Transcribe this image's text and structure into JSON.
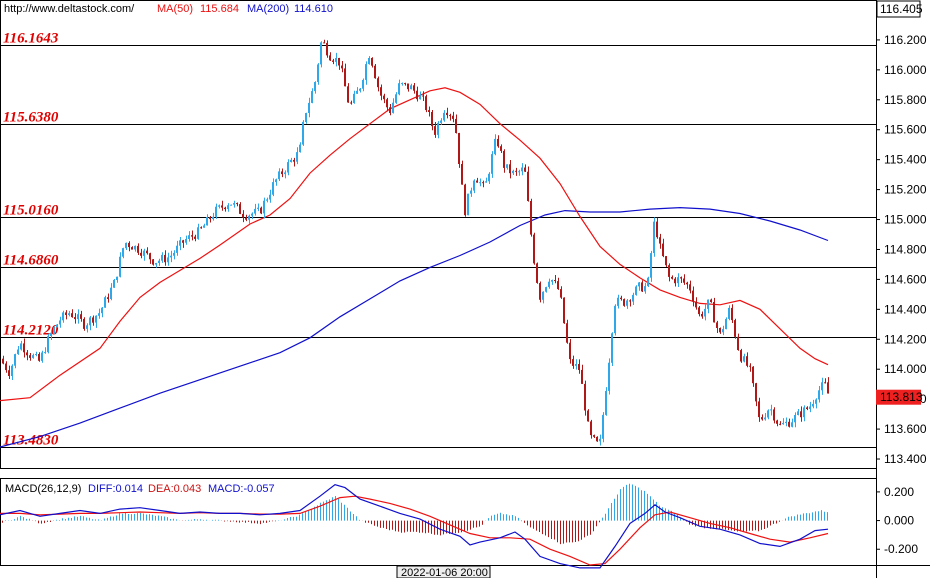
{
  "header": {
    "site": "http://www.deltastock.com/",
    "ma50_label": "MA(50)",
    "ma50_value": "115.684",
    "ma200_label": "MA(200)",
    "ma200_value": "114.610",
    "top_price": "116.405"
  },
  "colors": {
    "up": "#2ea8e8",
    "down": "#b01818",
    "ma50": "#ee1111",
    "ma200": "#1010cc",
    "level_text": "#e00000",
    "last_price_bg": "#ee2020"
  },
  "price_panel": {
    "ylim": [
      113.34,
      116.46
    ],
    "y_ticks": [
      "113.400",
      "113.600",
      "113.800",
      "114.000",
      "114.200",
      "114.400",
      "114.600",
      "114.800",
      "115.000",
      "115.200",
      "115.400",
      "115.600",
      "115.800",
      "116.000",
      "116.200"
    ],
    "last_price": "113.813",
    "levels": [
      {
        "label": "116.1643",
        "value": 116.1643
      },
      {
        "label": "115.6380",
        "value": 115.638
      },
      {
        "label": "115.0160",
        "value": 115.016
      },
      {
        "label": "114.6860",
        "value": 114.686
      },
      {
        "label": "114.2120",
        "value": 114.212
      },
      {
        "label": "113.4830",
        "value": 113.483
      }
    ]
  },
  "macd_panel": {
    "title": "MACD(26,12,9)",
    "diff_label": "DIFF:0.014",
    "dea_label": "DEA:0.043",
    "macd_label": "MACD:-0.057",
    "ylim": [
      -0.31,
      0.29
    ],
    "y_ticks": [
      "0.200",
      "0.000",
      "-0.200"
    ]
  },
  "x_axis": {
    "cursor_label": "2022-01-06 20:00"
  },
  "chart_data": {
    "type": "candlestick",
    "price_anchors": [
      [
        0,
        114.07
      ],
      [
        10,
        113.98
      ],
      [
        20,
        114.18
      ],
      [
        30,
        114.1
      ],
      [
        40,
        114.05
      ],
      [
        50,
        114.22
      ],
      [
        60,
        114.33
      ],
      [
        70,
        114.38
      ],
      [
        85,
        114.3
      ],
      [
        100,
        114.38
      ],
      [
        115,
        114.58
      ],
      [
        125,
        114.85
      ],
      [
        140,
        114.8
      ],
      [
        155,
        114.72
      ],
      [
        170,
        114.75
      ],
      [
        185,
        114.86
      ],
      [
        200,
        114.92
      ],
      [
        215,
        115.05
      ],
      [
        230,
        115.12
      ],
      [
        245,
        115.03
      ],
      [
        260,
        115.05
      ],
      [
        275,
        115.25
      ],
      [
        290,
        115.38
      ],
      [
        300,
        115.45
      ],
      [
        305,
        115.7
      ],
      [
        315,
        115.9
      ],
      [
        322,
        116.2
      ],
      [
        330,
        116.1
      ],
      [
        340,
        116.05
      ],
      [
        350,
        115.75
      ],
      [
        360,
        115.88
      ],
      [
        370,
        116.12
      ],
      [
        380,
        115.85
      ],
      [
        390,
        115.72
      ],
      [
        400,
        115.9
      ],
      [
        412,
        115.88
      ],
      [
        425,
        115.78
      ],
      [
        435,
        115.58
      ],
      [
        445,
        115.75
      ],
      [
        455,
        115.68
      ],
      [
        465,
        115.05
      ],
      [
        475,
        115.3
      ],
      [
        485,
        115.2
      ],
      [
        497,
        115.55
      ],
      [
        505,
        115.35
      ],
      [
        515,
        115.3
      ],
      [
        525,
        115.34
      ],
      [
        533,
        114.8
      ],
      [
        540,
        114.48
      ],
      [
        550,
        114.62
      ],
      [
        560,
        114.52
      ],
      [
        570,
        114.05
      ],
      [
        580,
        114.0
      ],
      [
        590,
        113.55
      ],
      [
        600,
        113.48
      ],
      [
        610,
        114.1
      ],
      [
        615,
        114.45
      ],
      [
        625,
        114.45
      ],
      [
        640,
        114.55
      ],
      [
        648,
        114.55
      ],
      [
        655,
        115.0
      ],
      [
        660,
        114.82
      ],
      [
        670,
        114.6
      ],
      [
        680,
        114.6
      ],
      [
        690,
        114.55
      ],
      [
        700,
        114.35
      ],
      [
        710,
        114.45
      ],
      [
        720,
        114.22
      ],
      [
        730,
        114.4
      ],
      [
        740,
        114.1
      ],
      [
        750,
        114.0
      ],
      [
        760,
        113.65
      ],
      [
        770,
        113.75
      ],
      [
        780,
        113.62
      ],
      [
        790,
        113.65
      ],
      [
        800,
        113.7
      ],
      [
        810,
        113.75
      ],
      [
        818,
        113.85
      ],
      [
        825,
        113.9
      ],
      [
        830,
        113.81
      ]
    ],
    "ma50": [
      [
        0,
        113.79
      ],
      [
        30,
        113.81
      ],
      [
        60,
        113.96
      ],
      [
        100,
        114.14
      ],
      [
        120,
        114.32
      ],
      [
        140,
        114.48
      ],
      [
        160,
        114.58
      ],
      [
        180,
        114.66
      ],
      [
        200,
        114.74
      ],
      [
        220,
        114.83
      ],
      [
        250,
        114.97
      ],
      [
        270,
        115.03
      ],
      [
        290,
        115.14
      ],
      [
        310,
        115.31
      ],
      [
        330,
        115.43
      ],
      [
        350,
        115.54
      ],
      [
        370,
        115.64
      ],
      [
        390,
        115.74
      ],
      [
        410,
        115.8
      ],
      [
        430,
        115.86
      ],
      [
        445,
        115.88
      ],
      [
        460,
        115.85
      ],
      [
        480,
        115.77
      ],
      [
        500,
        115.64
      ],
      [
        520,
        115.53
      ],
      [
        540,
        115.41
      ],
      [
        560,
        115.24
      ],
      [
        580,
        115.02
      ],
      [
        600,
        114.82
      ],
      [
        620,
        114.7
      ],
      [
        640,
        114.61
      ],
      [
        660,
        114.53
      ],
      [
        680,
        114.48
      ],
      [
        700,
        114.44
      ],
      [
        720,
        114.43
      ],
      [
        740,
        114.46
      ],
      [
        760,
        114.4
      ],
      [
        780,
        114.27
      ],
      [
        800,
        114.14
      ],
      [
        815,
        114.07
      ],
      [
        828,
        114.03
      ]
    ],
    "ma200": [
      [
        0,
        113.48
      ],
      [
        40,
        113.55
      ],
      [
        80,
        113.64
      ],
      [
        120,
        113.74
      ],
      [
        160,
        113.84
      ],
      [
        200,
        113.93
      ],
      [
        240,
        114.02
      ],
      [
        280,
        114.11
      ],
      [
        310,
        114.21
      ],
      [
        340,
        114.35
      ],
      [
        370,
        114.47
      ],
      [
        400,
        114.59
      ],
      [
        430,
        114.68
      ],
      [
        460,
        114.76
      ],
      [
        490,
        114.85
      ],
      [
        520,
        114.96
      ],
      [
        545,
        115.03
      ],
      [
        565,
        115.06
      ],
      [
        590,
        115.05
      ],
      [
        620,
        115.05
      ],
      [
        650,
        115.07
      ],
      [
        680,
        115.08
      ],
      [
        710,
        115.07
      ],
      [
        740,
        115.04
      ],
      [
        770,
        114.99
      ],
      [
        800,
        114.93
      ],
      [
        828,
        114.86
      ]
    ],
    "macd_diff": [
      [
        0,
        0.04
      ],
      [
        20,
        0.07
      ],
      [
        40,
        0.03
      ],
      [
        60,
        0.05
      ],
      [
        80,
        0.07
      ],
      [
        100,
        0.05
      ],
      [
        120,
        0.08
      ],
      [
        140,
        0.09
      ],
      [
        160,
        0.07
      ],
      [
        180,
        0.05
      ],
      [
        200,
        0.06
      ],
      [
        220,
        0.05
      ],
      [
        240,
        0.05
      ],
      [
        260,
        0.04
      ],
      [
        280,
        0.05
      ],
      [
        300,
        0.07
      ],
      [
        320,
        0.17
      ],
      [
        335,
        0.25
      ],
      [
        345,
        0.23
      ],
      [
        360,
        0.15
      ],
      [
        380,
        0.1
      ],
      [
        400,
        0.05
      ],
      [
        420,
        0.01
      ],
      [
        440,
        -0.06
      ],
      [
        460,
        -0.11
      ],
      [
        470,
        -0.17
      ],
      [
        480,
        -0.15
      ],
      [
        500,
        -0.12
      ],
      [
        515,
        -0.08
      ],
      [
        525,
        -0.13
      ],
      [
        540,
        -0.25
      ],
      [
        560,
        -0.3
      ],
      [
        580,
        -0.33
      ],
      [
        600,
        -0.33
      ],
      [
        615,
        -0.18
      ],
      [
        630,
        -0.02
      ],
      [
        645,
        0.05
      ],
      [
        655,
        0.11
      ],
      [
        665,
        0.06
      ],
      [
        680,
        0.02
      ],
      [
        700,
        -0.04
      ],
      [
        720,
        -0.06
      ],
      [
        740,
        -0.1
      ],
      [
        760,
        -0.16
      ],
      [
        780,
        -0.18
      ],
      [
        800,
        -0.13
      ],
      [
        815,
        -0.07
      ],
      [
        828,
        -0.06
      ]
    ],
    "macd_dea": [
      [
        0,
        0.05
      ],
      [
        20,
        0.05
      ],
      [
        40,
        0.04
      ],
      [
        60,
        0.045
      ],
      [
        80,
        0.05
      ],
      [
        100,
        0.05
      ],
      [
        120,
        0.055
      ],
      [
        140,
        0.06
      ],
      [
        160,
        0.055
      ],
      [
        180,
        0.05
      ],
      [
        200,
        0.055
      ],
      [
        220,
        0.05
      ],
      [
        240,
        0.05
      ],
      [
        260,
        0.045
      ],
      [
        280,
        0.045
      ],
      [
        300,
        0.05
      ],
      [
        320,
        0.1
      ],
      [
        340,
        0.16
      ],
      [
        355,
        0.17
      ],
      [
        370,
        0.15
      ],
      [
        390,
        0.12
      ],
      [
        410,
        0.08
      ],
      [
        430,
        0.03
      ],
      [
        450,
        -0.03
      ],
      [
        470,
        -0.09
      ],
      [
        490,
        -0.12
      ],
      [
        510,
        -0.12
      ],
      [
        530,
        -0.13
      ],
      [
        550,
        -0.2
      ],
      [
        570,
        -0.25
      ],
      [
        590,
        -0.31
      ],
      [
        605,
        -0.3
      ],
      [
        620,
        -0.2
      ],
      [
        640,
        -0.05
      ],
      [
        655,
        0.04
      ],
      [
        670,
        0.06
      ],
      [
        690,
        0.02
      ],
      [
        710,
        -0.02
      ],
      [
        730,
        -0.05
      ],
      [
        750,
        -0.09
      ],
      [
        770,
        -0.13
      ],
      [
        790,
        -0.15
      ],
      [
        810,
        -0.12
      ],
      [
        828,
        -0.09
      ]
    ],
    "macd_hist": [
      [
        0,
        -0.02
      ],
      [
        20,
        0.03
      ],
      [
        40,
        -0.02
      ],
      [
        60,
        0.01
      ],
      [
        80,
        0.03
      ],
      [
        100,
        0.0
      ],
      [
        120,
        0.05
      ],
      [
        140,
        0.05
      ],
      [
        160,
        0.03
      ],
      [
        180,
        0.0
      ],
      [
        200,
        0.01
      ],
      [
        220,
        0.0
      ],
      [
        240,
        -0.01
      ],
      [
        260,
        -0.02
      ],
      [
        280,
        0.0
      ],
      [
        300,
        0.04
      ],
      [
        320,
        0.12
      ],
      [
        335,
        0.17
      ],
      [
        345,
        0.1
      ],
      [
        360,
        0.0
      ],
      [
        380,
        -0.05
      ],
      [
        400,
        -0.08
      ],
      [
        420,
        -0.08
      ],
      [
        440,
        -0.1
      ],
      [
        460,
        -0.08
      ],
      [
        480,
        -0.04
      ],
      [
        490,
        0.03
      ],
      [
        500,
        0.05
      ],
      [
        515,
        0.03
      ],
      [
        530,
        -0.05
      ],
      [
        545,
        -0.1
      ],
      [
        560,
        -0.16
      ],
      [
        575,
        -0.15
      ],
      [
        590,
        -0.1
      ],
      [
        605,
        0.05
      ],
      [
        620,
        0.22
      ],
      [
        630,
        0.26
      ],
      [
        645,
        0.2
      ],
      [
        660,
        0.1
      ],
      [
        675,
        0.05
      ],
      [
        690,
        -0.03
      ],
      [
        705,
        -0.05
      ],
      [
        720,
        -0.06
      ],
      [
        740,
        -0.08
      ],
      [
        760,
        -0.07
      ],
      [
        775,
        -0.02
      ],
      [
        790,
        0.03
      ],
      [
        805,
        0.05
      ],
      [
        820,
        0.07
      ],
      [
        828,
        0.06
      ]
    ]
  }
}
